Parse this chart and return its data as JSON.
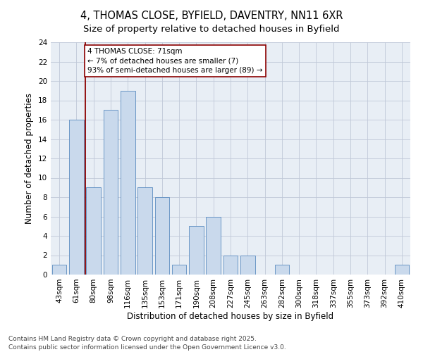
{
  "title_line1": "4, THOMAS CLOSE, BYFIELD, DAVENTRY, NN11 6XR",
  "title_line2": "Size of property relative to detached houses in Byfield",
  "xlabel": "Distribution of detached houses by size in Byfield",
  "ylabel": "Number of detached properties",
  "categories": [
    "43sqm",
    "61sqm",
    "80sqm",
    "98sqm",
    "116sqm",
    "135sqm",
    "153sqm",
    "171sqm",
    "190sqm",
    "208sqm",
    "227sqm",
    "245sqm",
    "263sqm",
    "282sqm",
    "300sqm",
    "318sqm",
    "337sqm",
    "355sqm",
    "373sqm",
    "392sqm",
    "410sqm"
  ],
  "values": [
    1,
    16,
    9,
    17,
    19,
    9,
    8,
    1,
    5,
    6,
    2,
    2,
    0,
    1,
    0,
    0,
    0,
    0,
    0,
    0,
    1
  ],
  "bar_color": "#c9d9ec",
  "bar_edge_color": "#5a8bbf",
  "vline_x_index": 1.5,
  "vline_color": "#8b0000",
  "annotation_text": "4 THOMAS CLOSE: 71sqm\n← 7% of detached houses are smaller (7)\n93% of semi-detached houses are larger (89) →",
  "annotation_box_color": "#8b0000",
  "ylim": [
    0,
    24
  ],
  "yticks": [
    0,
    2,
    4,
    6,
    8,
    10,
    12,
    14,
    16,
    18,
    20,
    22,
    24
  ],
  "grid_color": "#c0c8d8",
  "background_color": "#e8eef5",
  "fig_background": "#ffffff",
  "footer_text": "Contains HM Land Registry data © Crown copyright and database right 2025.\nContains public sector information licensed under the Open Government Licence v3.0.",
  "title_fontsize": 10.5,
  "subtitle_fontsize": 9.5,
  "axis_label_fontsize": 8.5,
  "tick_fontsize": 7.5,
  "annotation_fontsize": 7.5,
  "footer_fontsize": 6.5
}
